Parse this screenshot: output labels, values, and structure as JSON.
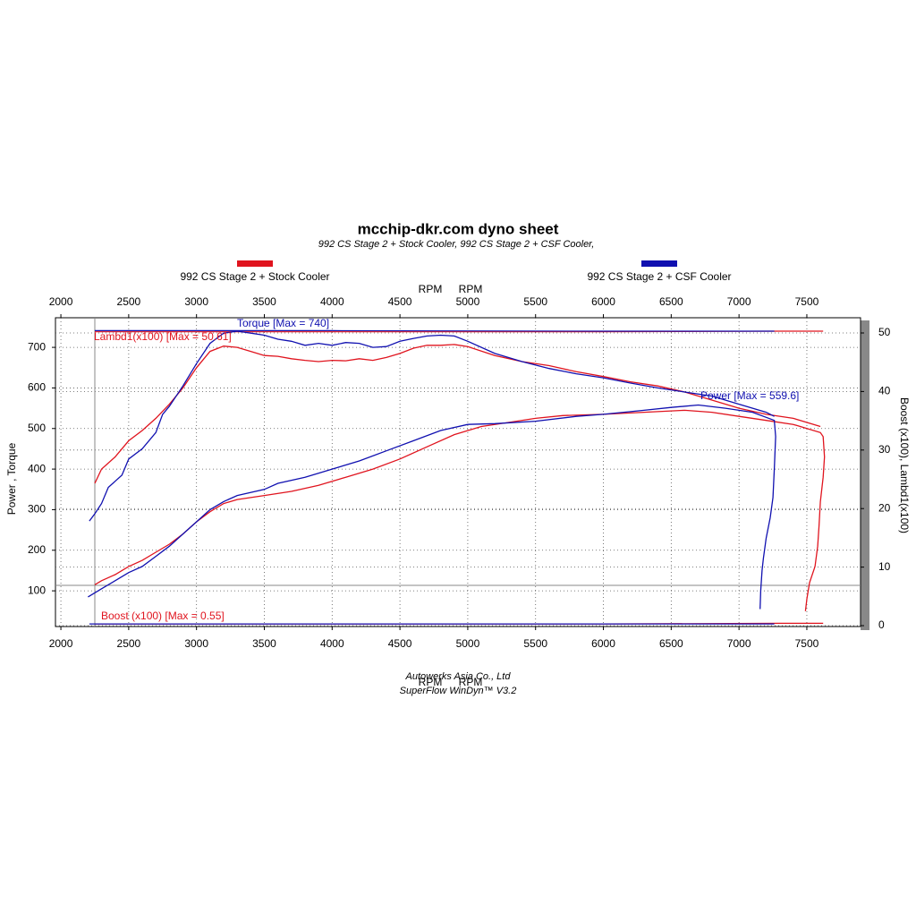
{
  "chart_data": {
    "type": "line",
    "title": "mcchip-dkr.com dyno sheet",
    "subtitle": "992 CS Stage 2 + Stock Cooler, 992 CS Stage 2 + CSF Cooler,",
    "x_label_top": [
      "RPM",
      "RPM"
    ],
    "x_label_bottom": [
      "RPM",
      "RPM"
    ],
    "y_label": "Power , Torque",
    "y2_label": "Boost (x100), Lambd1(x100)",
    "footer": [
      "Autowerks Asia Co., Ltd",
      "SuperFlow WinDyn™ V3.2"
    ],
    "annotations": {
      "torque": "Torque [Max = 740]",
      "lambda": "Lambd1(x100) [Max = 50.61]",
      "power": "Power  [Max = 559.6]",
      "boost": "Boost (x100) [Max = 0.55]"
    },
    "xlim": [
      1960,
      7896
    ],
    "xticks": [
      2000,
      2500,
      3000,
      3500,
      4000,
      4500,
      5000,
      5500,
      6000,
      6500,
      7000,
      7500
    ],
    "ylim": [
      12,
      773
    ],
    "yticks": [
      100,
      200,
      300,
      400,
      500,
      600,
      700
    ],
    "y2lim": [
      -0.15,
      52.6
    ],
    "y2ticks": [
      0,
      10,
      20,
      30,
      40,
      50
    ],
    "grid": true,
    "runs": [
      {
        "name": "992 CS Stage 2 + Stock Cooler",
        "color": "#e0141e",
        "torque": {
          "x": [
            2250,
            2300,
            2400,
            2500,
            2600,
            2700,
            2800,
            2900,
            3000,
            3100,
            3200,
            3300,
            3400,
            3500,
            3600,
            3700,
            3800,
            3900,
            4000,
            4100,
            4200,
            4300,
            4400,
            4500,
            4600,
            4700,
            4800,
            4900,
            5000,
            5200,
            5400,
            5600,
            5800,
            6000,
            6200,
            6400,
            6600,
            6800,
            7000,
            7200,
            7400,
            7600
          ],
          "values": [
            365,
            400,
            430,
            470,
            495,
            525,
            560,
            600,
            650,
            690,
            703,
            700,
            690,
            680,
            678,
            672,
            668,
            665,
            668,
            667,
            672,
            668,
            675,
            685,
            698,
            705,
            705,
            707,
            702,
            680,
            665,
            655,
            640,
            628,
            615,
            605,
            590,
            570,
            550,
            535,
            525,
            505
          ]
        },
        "power": {
          "x": [
            2250,
            2300,
            2400,
            2500,
            2600,
            2700,
            2800,
            2900,
            3000,
            3100,
            3200,
            3300,
            3500,
            3700,
            3900,
            4100,
            4300,
            4500,
            4700,
            4900,
            5100,
            5300,
            5500,
            5700,
            6000,
            6300,
            6600,
            6800,
            7000,
            7200,
            7400,
            7600,
            7620,
            7630,
            7620,
            7600,
            7590,
            7580,
            7560,
            7520,
            7500,
            7490
          ],
          "values": [
            115,
            125,
            140,
            160,
            175,
            195,
            215,
            240,
            270,
            295,
            315,
            325,
            335,
            345,
            360,
            380,
            400,
            425,
            455,
            485,
            505,
            515,
            525,
            532,
            535,
            540,
            545,
            540,
            530,
            520,
            510,
            490,
            480,
            430,
            380,
            320,
            260,
            210,
            160,
            120,
            80,
            50
          ]
        },
        "lambda": {
          "axis": "y2",
          "x": [
            2250,
            4000,
            6000,
            7300,
            7620
          ],
          "values": [
            50.2,
            50.2,
            50.2,
            50.3,
            50.3
          ]
        },
        "boost": {
          "axis": "y2",
          "x": [
            2250,
            4000,
            6000,
            7300,
            7620
          ],
          "values": [
            0.3,
            0.3,
            0.3,
            0.4,
            0.4
          ]
        }
      },
      {
        "name": "992 CS Stage 2 + CSF Cooler",
        "color": "#1010b0",
        "torque": {
          "x": [
            2210,
            2250,
            2300,
            2350,
            2400,
            2450,
            2500,
            2600,
            2700,
            2750,
            2800,
            2900,
            3000,
            3100,
            3200,
            3300,
            3400,
            3500,
            3600,
            3700,
            3800,
            3900,
            4000,
            4100,
            4200,
            4300,
            4400,
            4500,
            4600,
            4700,
            4800,
            4900,
            5000,
            5200,
            5400,
            5600,
            5800,
            6000,
            6200,
            6400,
            6600,
            6800,
            7000,
            7200,
            7260
          ],
          "values": [
            272,
            290,
            315,
            355,
            370,
            385,
            425,
            450,
            490,
            535,
            555,
            605,
            660,
            710,
            735,
            740,
            735,
            730,
            720,
            715,
            705,
            710,
            705,
            712,
            710,
            700,
            702,
            715,
            722,
            728,
            730,
            728,
            715,
            685,
            665,
            648,
            635,
            625,
            612,
            600,
            590,
            580,
            560,
            540,
            530
          ]
        },
        "power": {
          "x": [
            2200,
            2300,
            2400,
            2500,
            2600,
            2700,
            2800,
            2900,
            3000,
            3100,
            3200,
            3300,
            3500,
            3600,
            3800,
            4000,
            4200,
            4400,
            4600,
            4800,
            5000,
            5200,
            5500,
            5800,
            6000,
            6300,
            6500,
            6700,
            6900,
            7100,
            7260,
            7270,
            7260,
            7250,
            7230,
            7200,
            7180,
            7170,
            7160,
            7155
          ],
          "values": [
            85,
            105,
            125,
            145,
            160,
            185,
            210,
            240,
            270,
            300,
            320,
            335,
            350,
            365,
            380,
            400,
            420,
            445,
            470,
            495,
            510,
            512,
            518,
            530,
            535,
            545,
            552,
            558,
            550,
            540,
            520,
            480,
            400,
            330,
            280,
            230,
            180,
            150,
            100,
            55
          ]
        },
        "lambda": {
          "axis": "y2",
          "x": [
            2250,
            4000,
            6000,
            7260
          ],
          "values": [
            50.4,
            50.4,
            50.3,
            50.3
          ]
        },
        "boost": {
          "axis": "y2",
          "x": [
            2210,
            4000,
            6000,
            7260
          ],
          "values": [
            0.3,
            0.3,
            0.3,
            0.3
          ]
        }
      }
    ]
  }
}
